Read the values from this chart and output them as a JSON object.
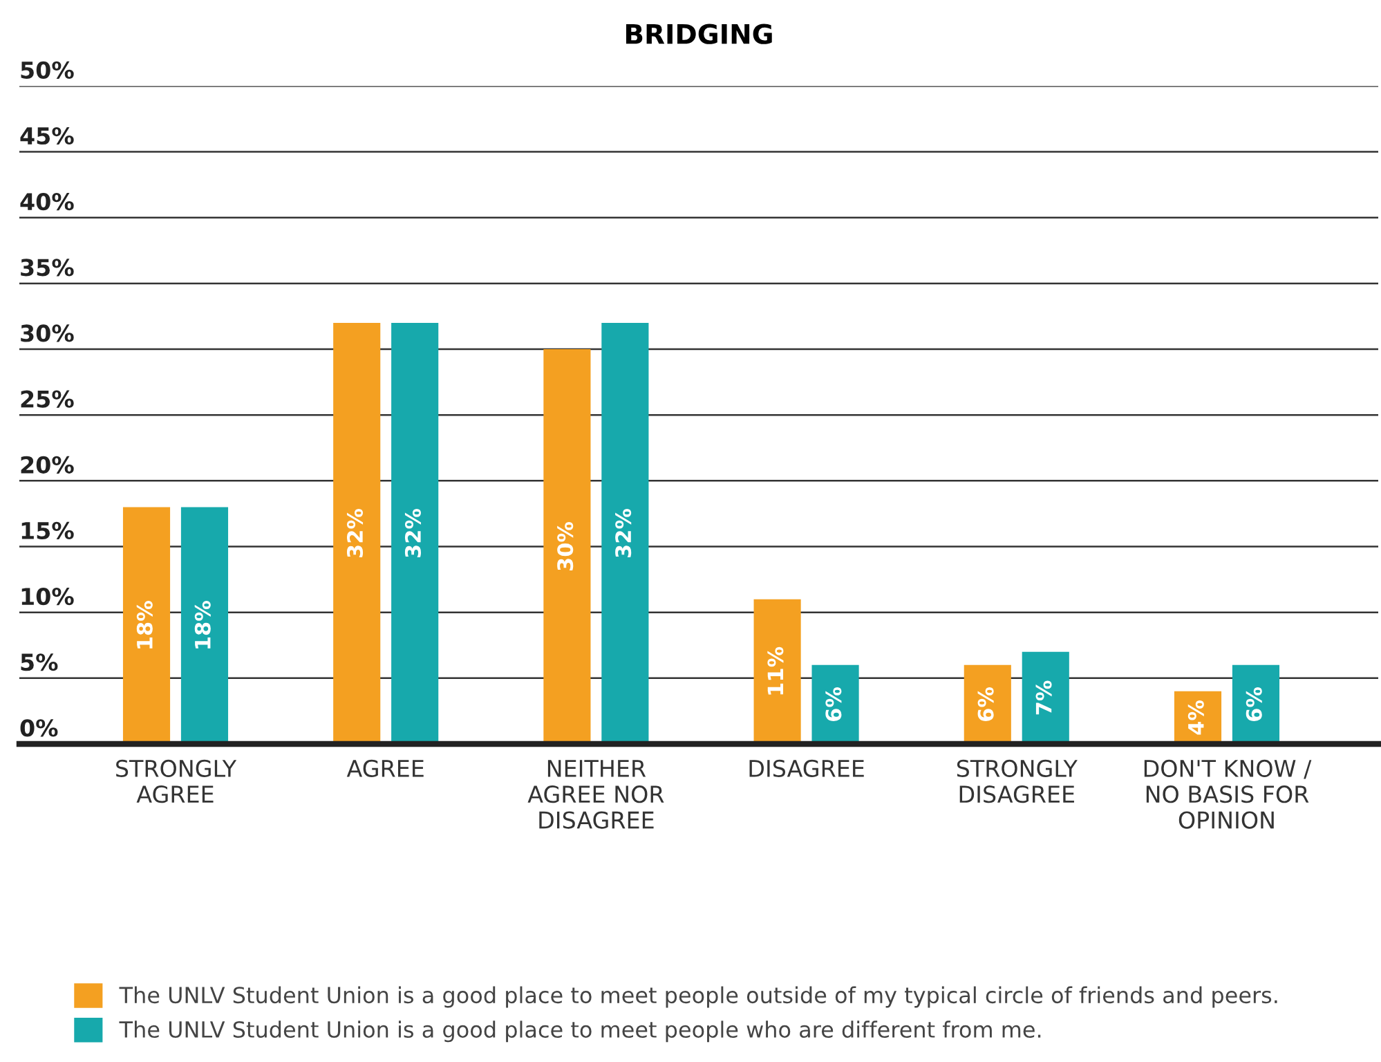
{
  "chart_data": {
    "type": "bar",
    "title": "BRIDGING",
    "categories": [
      "STRONGLY\nAGREE",
      "AGREE",
      "NEITHER\nAGREE NOR\nDISAGREE",
      "DISAGREE",
      "STRONGLY\nDISAGREE",
      "DON'T KNOW /\nNO BASIS FOR\nOPINION"
    ],
    "series": [
      {
        "name": "The UNLV Student Union is a good place to meet people outside of my typical circle of friends and peers.",
        "color": "#f4a021",
        "values": [
          18,
          32,
          30,
          11,
          6,
          4
        ],
        "value_labels": [
          "18%",
          "32%",
          "30%",
          "11%",
          "6%",
          "4%"
        ]
      },
      {
        "name": "The UNLV Student Union is a good place to meet people who are different from me.",
        "color": "#17a9ac",
        "values": [
          18,
          32,
          32,
          6,
          7,
          6
        ],
        "value_labels": [
          "18%",
          "32%",
          "32%",
          "6%",
          "7%",
          "6%"
        ]
      }
    ],
    "ylim": [
      0,
      50
    ],
    "yticks": [
      {
        "value": 0,
        "label": "0%"
      },
      {
        "value": 5,
        "label": "5%"
      },
      {
        "value": 10,
        "label": "10%"
      },
      {
        "value": 15,
        "label": "15%"
      },
      {
        "value": 20,
        "label": "20%"
      },
      {
        "value": 25,
        "label": "25%"
      },
      {
        "value": 30,
        "label": "30%"
      },
      {
        "value": 35,
        "label": "35%"
      },
      {
        "value": 40,
        "label": "40%"
      },
      {
        "value": 45,
        "label": "45%"
      },
      {
        "value": 50,
        "label": "50%"
      }
    ],
    "grid": "y",
    "legend": "bottom"
  }
}
